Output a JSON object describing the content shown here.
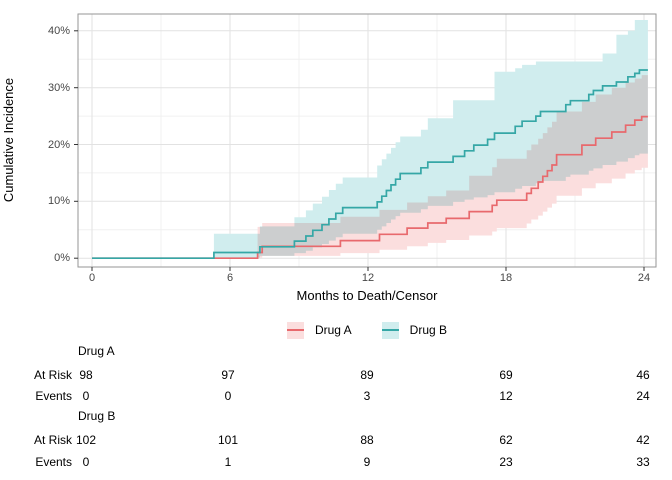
{
  "chart_data": {
    "type": "line",
    "subtype": "step_cumulative_incidence_with_confidence_bands",
    "title": "",
    "x_label": "Months to Death/Censor",
    "y_label": "Cumulative Incidence",
    "x_tick_values": [
      0,
      6,
      12,
      18,
      24
    ],
    "x_tick_labels": [
      "0",
      "6",
      "12",
      "18",
      "24"
    ],
    "y_tick_values": [
      0,
      10,
      20,
      30,
      40
    ],
    "y_tick_labels": [
      "0%",
      "10%",
      "20%",
      "30%",
      "40%"
    ],
    "x_minor_gridlines": [
      3,
      9,
      15,
      21
    ],
    "y_minor_gridlines": [
      5,
      15,
      25,
      35
    ],
    "xlim": [
      -0.6,
      24.5
    ],
    "ylim": [
      -1.6,
      42.9
    ],
    "grid": true,
    "legend_position": "bottom",
    "cap_time": 24.17,
    "points_format": [
      "months",
      "estimate_pct",
      "ci_lower_pct",
      "ci_upper_pct"
    ],
    "series": [
      {
        "name": "Drug A",
        "line_color": "#E8696D",
        "band_color": "#FBDEDE",
        "steps": [
          [
            0,
            0,
            0,
            0
          ],
          [
            7.2,
            1.0,
            0.1,
            5.5
          ],
          [
            7.4,
            2.1,
            0.4,
            6.2
          ],
          [
            10.8,
            3.1,
            0.9,
            7.3
          ],
          [
            12.5,
            4.2,
            1.5,
            8.5
          ],
          [
            13.7,
            5.3,
            2.1,
            9.8
          ],
          [
            14.6,
            6.2,
            2.7,
            10.9
          ],
          [
            15.4,
            7.0,
            3.2,
            11.9
          ],
          [
            16.4,
            8.2,
            4.0,
            14.5
          ],
          [
            17.4,
            9.3,
            4.7,
            16.0
          ],
          [
            17.6,
            10.2,
            5.3,
            17.5
          ],
          [
            18.9,
            11.4,
            6.1,
            19.0
          ],
          [
            19.1,
            12.3,
            6.8,
            20.0
          ],
          [
            19.4,
            13.4,
            7.5,
            21.0
          ],
          [
            19.6,
            14.4,
            8.2,
            22.0
          ],
          [
            19.8,
            15.4,
            8.9,
            23.0
          ],
          [
            20.0,
            16.4,
            9.6,
            24.0
          ],
          [
            20.2,
            18.2,
            11.0,
            25.8
          ],
          [
            21.3,
            19.9,
            12.3,
            27.5
          ],
          [
            21.9,
            21.1,
            13.2,
            28.8
          ],
          [
            22.6,
            22.2,
            14.0,
            30.0
          ],
          [
            23.2,
            23.4,
            14.9,
            30.9
          ],
          [
            23.6,
            24.3,
            15.5,
            31.6
          ],
          [
            23.9,
            24.9,
            15.9,
            32.2
          ]
        ]
      },
      {
        "name": "Drug B",
        "line_color": "#35A7A6",
        "band_color": "#D0EDEE",
        "steps": [
          [
            0,
            0,
            0,
            0
          ],
          [
            5.3,
            1.0,
            0.05,
            4.3
          ],
          [
            7.3,
            2.0,
            0.4,
            5.6
          ],
          [
            8.8,
            3.0,
            0.9,
            7.2
          ],
          [
            9.3,
            3.9,
            1.3,
            8.4
          ],
          [
            9.6,
            4.9,
            1.9,
            9.6
          ],
          [
            10.0,
            5.9,
            2.5,
            10.8
          ],
          [
            10.3,
            6.9,
            3.1,
            12.0
          ],
          [
            10.6,
            7.9,
            3.7,
            13.1
          ],
          [
            10.9,
            8.9,
            4.3,
            14.2
          ],
          [
            12.4,
            9.9,
            5.0,
            16.3
          ],
          [
            12.6,
            10.9,
            5.6,
            17.4
          ],
          [
            12.8,
            11.9,
            6.2,
            18.4
          ],
          [
            13.0,
            12.9,
            6.8,
            19.4
          ],
          [
            13.2,
            13.9,
            7.4,
            20.4
          ],
          [
            13.4,
            14.9,
            8.0,
            21.4
          ],
          [
            14.3,
            15.9,
            8.6,
            22.6
          ],
          [
            14.6,
            16.9,
            9.2,
            24.6
          ],
          [
            15.7,
            17.9,
            9.9,
            27.8
          ],
          [
            16.2,
            18.9,
            10.3,
            27.8
          ],
          [
            16.6,
            19.9,
            10.7,
            27.8
          ],
          [
            17.2,
            20.9,
            11.1,
            27.8
          ],
          [
            17.5,
            22.0,
            11.6,
            32.8
          ],
          [
            18.4,
            23.2,
            12.2,
            33.4
          ],
          [
            18.7,
            24.1,
            12.7,
            34.0
          ],
          [
            19.3,
            25.0,
            13.2,
            34.6
          ],
          [
            19.5,
            25.8,
            13.6,
            34.6
          ],
          [
            20.6,
            27.0,
            14.3,
            34.6
          ],
          [
            20.8,
            27.7,
            14.7,
            34.6
          ],
          [
            21.6,
            28.8,
            15.4,
            34.6
          ],
          [
            21.8,
            29.5,
            15.8,
            34.6
          ],
          [
            22.2,
            30.3,
            16.4,
            36.0
          ],
          [
            22.8,
            31.0,
            17.0,
            39.3
          ],
          [
            23.3,
            31.9,
            17.6,
            40.0
          ],
          [
            23.6,
            32.5,
            18.1,
            41.9
          ],
          [
            23.8,
            33.1,
            18.4,
            41.9
          ]
        ]
      }
    ]
  },
  "legend": {
    "items": [
      {
        "label": "Drug A",
        "series": 0
      },
      {
        "label": "Drug B",
        "series": 1
      }
    ]
  },
  "risk_table": {
    "time_points": [
      0,
      6,
      12,
      18,
      24
    ],
    "groups": [
      {
        "name": "Drug A",
        "rows": [
          {
            "label": "At Risk",
            "values": [
              "98",
              "97",
              "89",
              "69",
              "46"
            ]
          },
          {
            "label": "Events",
            "values": [
              "0",
              "0",
              "3",
              "12",
              "24"
            ]
          }
        ]
      },
      {
        "name": "Drug B",
        "rows": [
          {
            "label": "At Risk",
            "values": [
              "102",
              "101",
              "88",
              "62",
              "42"
            ]
          },
          {
            "label": "Events",
            "values": [
              "0",
              "1",
              "9",
              "23",
              "33"
            ]
          }
        ]
      }
    ]
  }
}
